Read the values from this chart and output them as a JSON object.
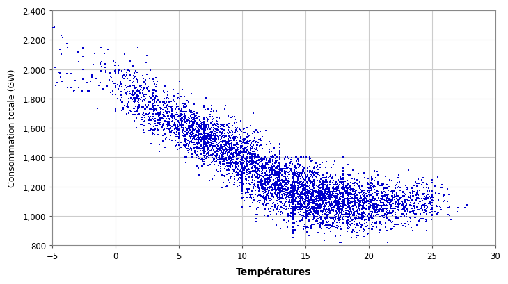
{
  "title": "",
  "xlabel": "Températures",
  "ylabel": "Consommation totale (GW)",
  "xlim": [
    -5,
    30
  ],
  "ylim": [
    800,
    2400
  ],
  "xticks": [
    -5,
    0,
    5,
    10,
    15,
    20,
    25,
    30
  ],
  "yticks": [
    800,
    1000,
    1200,
    1400,
    1600,
    1800,
    2000,
    2200,
    2400
  ],
  "dot_color": "#0000CC",
  "dot_size": 1.5,
  "seed": 42,
  "background_color": "#ffffff",
  "grid_color": "#cccccc"
}
